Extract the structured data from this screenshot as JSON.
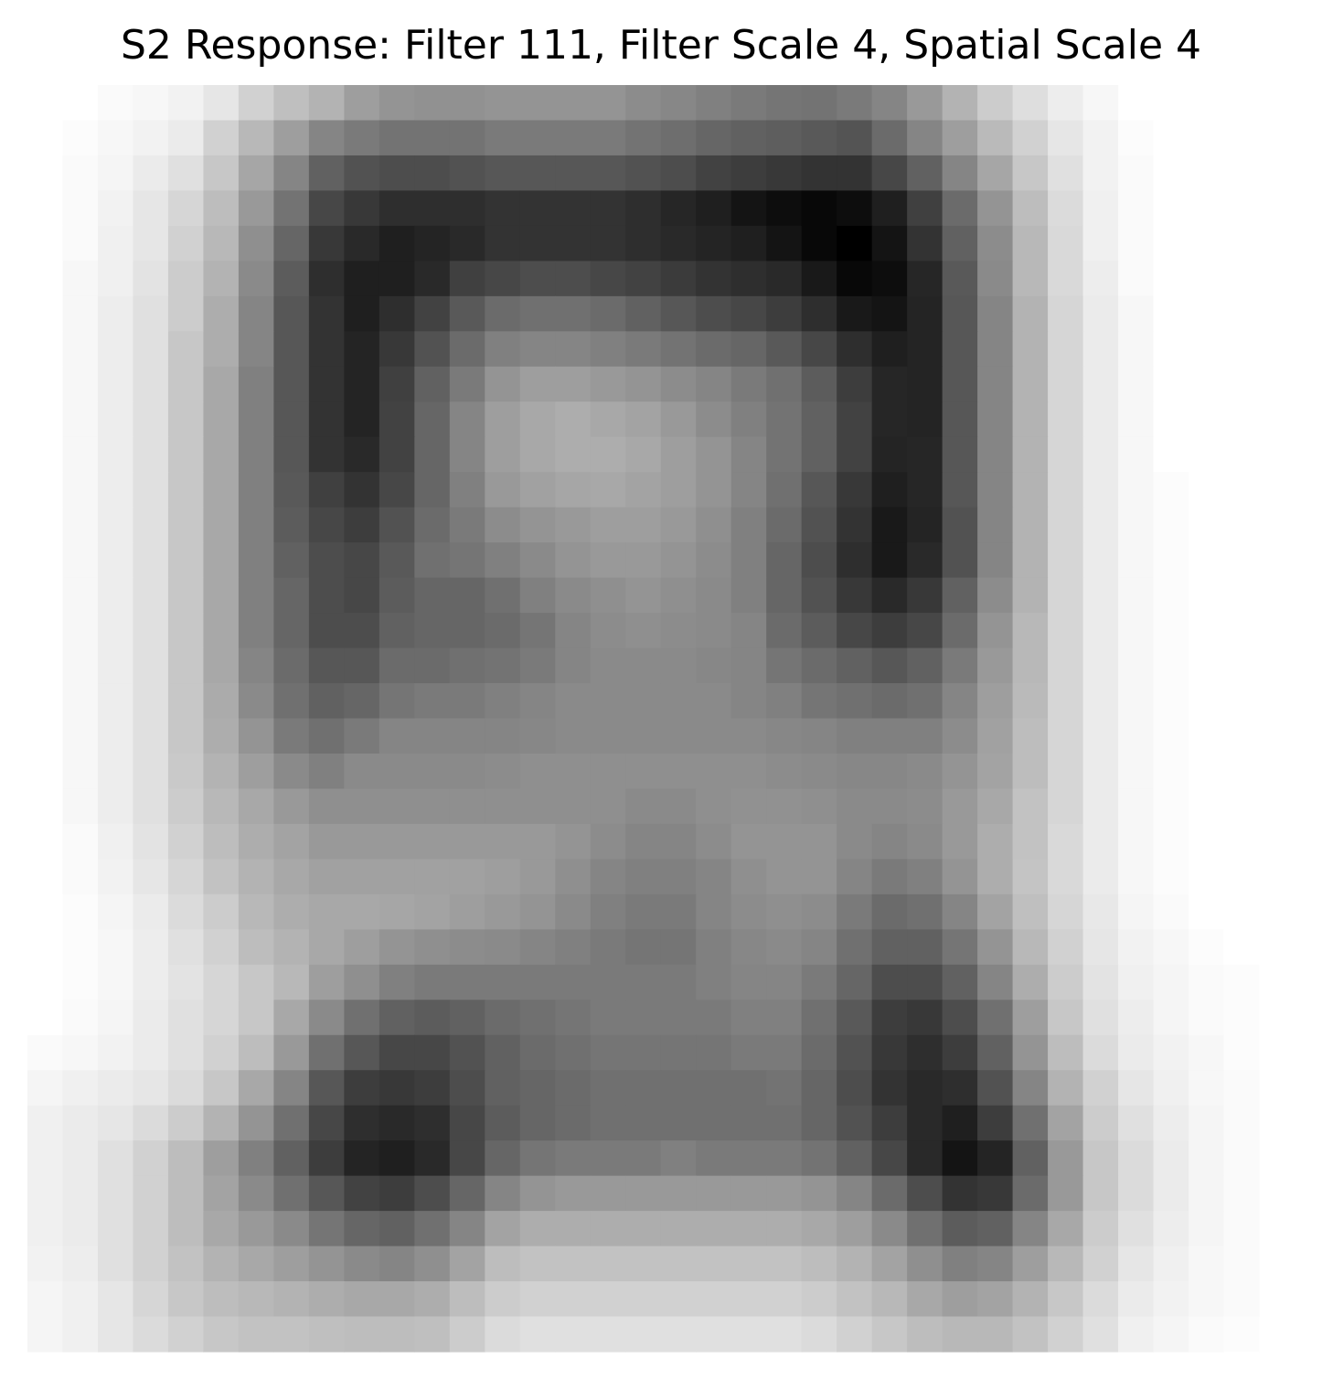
{
  "chart_data": {
    "type": "heatmap",
    "title": "S2 Response: Filter 111, Filter Scale 4, Spatial Scale 4",
    "cmap": "gray_r",
    "clim": [
      0,
      100
    ],
    "values": [
      [
        0,
        0,
        2,
        3,
        5,
        10,
        18,
        25,
        30,
        38,
        42,
        43,
        43,
        42,
        42,
        42,
        42,
        45,
        47,
        50,
        52,
        54,
        55,
        52,
        48,
        40,
        30,
        20,
        13,
        7,
        3,
        0,
        0,
        0,
        0
      ],
      [
        0,
        1,
        3,
        5,
        8,
        18,
        28,
        38,
        48,
        52,
        55,
        55,
        55,
        52,
        52,
        52,
        52,
        55,
        57,
        60,
        62,
        63,
        65,
        67,
        58,
        48,
        38,
        27,
        18,
        10,
        5,
        1,
        0,
        0,
        0
      ],
      [
        0,
        2,
        4,
        8,
        12,
        22,
        35,
        48,
        62,
        68,
        70,
        70,
        68,
        66,
        66,
        66,
        66,
        68,
        70,
        74,
        76,
        78,
        80,
        80,
        72,
        62,
        48,
        35,
        22,
        12,
        5,
        2,
        0,
        0,
        0
      ],
      [
        0,
        2,
        5,
        10,
        16,
        26,
        40,
        55,
        72,
        78,
        82,
        82,
        82,
        80,
        80,
        80,
        80,
        82,
        85,
        88,
        92,
        95,
        97,
        95,
        88,
        75,
        58,
        42,
        26,
        14,
        6,
        2,
        0,
        0,
        0
      ],
      [
        0,
        2,
        6,
        10,
        18,
        28,
        44,
        60,
        78,
        84,
        88,
        86,
        84,
        80,
        80,
        80,
        80,
        82,
        84,
        86,
        88,
        92,
        97,
        100,
        92,
        80,
        62,
        45,
        28,
        15,
        6,
        2,
        0,
        0,
        0
      ],
      [
        0,
        3,
        6,
        11,
        20,
        30,
        46,
        64,
        82,
        88,
        88,
        84,
        75,
        72,
        70,
        70,
        72,
        74,
        77,
        80,
        82,
        84,
        90,
        97,
        95,
        85,
        65,
        46,
        28,
        15,
        7,
        2,
        0,
        0,
        0
      ],
      [
        0,
        3,
        7,
        12,
        20,
        32,
        48,
        66,
        80,
        88,
        82,
        74,
        65,
        58,
        56,
        56,
        58,
        62,
        66,
        70,
        72,
        76,
        82,
        90,
        92,
        86,
        66,
        48,
        30,
        16,
        8,
        3,
        0,
        0,
        0
      ],
      [
        0,
        3,
        7,
        12,
        22,
        32,
        48,
        66,
        80,
        86,
        78,
        68,
        58,
        50,
        48,
        48,
        50,
        52,
        55,
        58,
        60,
        65,
        72,
        82,
        88,
        86,
        66,
        48,
        30,
        16,
        8,
        3,
        0,
        0,
        0
      ],
      [
        0,
        3,
        7,
        12,
        22,
        34,
        50,
        66,
        80,
        86,
        75,
        62,
        52,
        42,
        38,
        38,
        40,
        42,
        45,
        48,
        52,
        56,
        64,
        76,
        85,
        86,
        66,
        48,
        30,
        16,
        8,
        3,
        0,
        0,
        0
      ],
      [
        0,
        3,
        7,
        12,
        22,
        34,
        50,
        66,
        80,
        86,
        74,
        60,
        48,
        38,
        34,
        32,
        34,
        36,
        40,
        45,
        50,
        55,
        62,
        74,
        85,
        86,
        66,
        48,
        30,
        16,
        8,
        3,
        0,
        0,
        0
      ],
      [
        0,
        3,
        7,
        12,
        22,
        34,
        50,
        66,
        80,
        84,
        74,
        60,
        48,
        38,
        34,
        32,
        32,
        34,
        38,
        42,
        48,
        55,
        62,
        74,
        86,
        85,
        66,
        48,
        30,
        16,
        8,
        3,
        0,
        0,
        0
      ],
      [
        0,
        3,
        7,
        12,
        22,
        34,
        50,
        65,
        75,
        80,
        72,
        60,
        50,
        40,
        37,
        35,
        34,
        36,
        38,
        42,
        48,
        56,
        66,
        78,
        88,
        85,
        66,
        48,
        30,
        16,
        8,
        3,
        1,
        0,
        0
      ],
      [
        0,
        3,
        7,
        12,
        22,
        34,
        50,
        64,
        72,
        76,
        68,
        58,
        52,
        45,
        42,
        40,
        38,
        38,
        40,
        44,
        50,
        58,
        68,
        80,
        90,
        86,
        68,
        48,
        30,
        16,
        8,
        3,
        1,
        0,
        0
      ],
      [
        0,
        3,
        7,
        12,
        22,
        34,
        50,
        62,
        70,
        72,
        65,
        56,
        54,
        50,
        46,
        42,
        40,
        40,
        42,
        45,
        50,
        60,
        70,
        82,
        90,
        84,
        68,
        48,
        30,
        16,
        8,
        3,
        1,
        0,
        0
      ],
      [
        0,
        3,
        7,
        12,
        22,
        34,
        50,
        60,
        70,
        72,
        64,
        60,
        60,
        56,
        50,
        46,
        44,
        42,
        44,
        46,
        50,
        60,
        68,
        78,
        84,
        78,
        62,
        45,
        30,
        16,
        8,
        3,
        1,
        0,
        0
      ],
      [
        0,
        3,
        7,
        12,
        22,
        34,
        50,
        60,
        70,
        70,
        62,
        60,
        60,
        58,
        54,
        48,
        45,
        44,
        45,
        46,
        48,
        58,
        64,
        72,
        76,
        72,
        58,
        42,
        28,
        16,
        8,
        3,
        1,
        0,
        0
      ],
      [
        0,
        3,
        7,
        12,
        22,
        34,
        48,
        58,
        66,
        66,
        58,
        58,
        56,
        55,
        52,
        48,
        46,
        46,
        46,
        47,
        48,
        54,
        58,
        62,
        66,
        62,
        52,
        40,
        28,
        16,
        8,
        3,
        1,
        0,
        0
      ],
      [
        0,
        3,
        7,
        12,
        22,
        33,
        46,
        56,
        62,
        60,
        54,
        52,
        52,
        50,
        48,
        46,
        46,
        46,
        46,
        46,
        48,
        50,
        54,
        56,
        58,
        56,
        48,
        38,
        27,
        16,
        8,
        3,
        1,
        0,
        0
      ],
      [
        0,
        3,
        7,
        12,
        22,
        32,
        42,
        52,
        56,
        52,
        48,
        48,
        48,
        48,
        47,
        46,
        46,
        46,
        46,
        46,
        46,
        47,
        48,
        50,
        50,
        50,
        45,
        37,
        26,
        16,
        8,
        3,
        1,
        0,
        0
      ],
      [
        0,
        3,
        7,
        12,
        21,
        30,
        38,
        46,
        50,
        46,
        46,
        46,
        46,
        45,
        44,
        44,
        44,
        44,
        44,
        44,
        44,
        45,
        46,
        47,
        47,
        46,
        42,
        36,
        26,
        16,
        8,
        3,
        1,
        0,
        0
      ],
      [
        0,
        3,
        7,
        12,
        20,
        28,
        34,
        40,
        44,
        44,
        44,
        44,
        44,
        44,
        44,
        44,
        44,
        46,
        46,
        44,
        43,
        43,
        44,
        46,
        46,
        45,
        40,
        34,
        24,
        16,
        8,
        3,
        1,
        0,
        0
      ],
      [
        0,
        2,
        6,
        11,
        18,
        26,
        32,
        36,
        40,
        40,
        40,
        40,
        40,
        40,
        40,
        42,
        45,
        48,
        48,
        45,
        42,
        42,
        42,
        46,
        48,
        46,
        40,
        32,
        24,
        15,
        8,
        3,
        1,
        0,
        0
      ],
      [
        0,
        2,
        5,
        10,
        16,
        24,
        30,
        34,
        37,
        37,
        37,
        37,
        37,
        38,
        40,
        44,
        48,
        50,
        50,
        48,
        44,
        42,
        42,
        48,
        52,
        50,
        42,
        32,
        23,
        15,
        8,
        3,
        1,
        0,
        0
      ],
      [
        0,
        1,
        4,
        8,
        14,
        20,
        28,
        32,
        34,
        34,
        35,
        36,
        38,
        40,
        42,
        46,
        50,
        52,
        52,
        48,
        45,
        44,
        45,
        52,
        58,
        56,
        48,
        36,
        25,
        16,
        9,
        4,
        2,
        0,
        0
      ],
      [
        0,
        1,
        3,
        7,
        12,
        18,
        26,
        30,
        34,
        38,
        42,
        44,
        45,
        46,
        48,
        50,
        52,
        54,
        54,
        50,
        47,
        46,
        48,
        56,
        62,
        62,
        54,
        42,
        28,
        18,
        10,
        5,
        3,
        1,
        0
      ],
      [
        0,
        1,
        3,
        7,
        11,
        16,
        22,
        28,
        38,
        44,
        50,
        52,
        52,
        52,
        52,
        52,
        52,
        52,
        52,
        50,
        48,
        48,
        52,
        60,
        70,
        70,
        62,
        48,
        32,
        20,
        11,
        6,
        4,
        2,
        1
      ],
      [
        0,
        2,
        4,
        8,
        12,
        16,
        22,
        34,
        46,
        56,
        62,
        64,
        62,
        58,
        56,
        54,
        52,
        52,
        52,
        52,
        50,
        50,
        56,
        65,
        76,
        78,
        70,
        56,
        38,
        22,
        12,
        7,
        4,
        2,
        1
      ],
      [
        2,
        3,
        5,
        8,
        12,
        18,
        26,
        40,
        56,
        66,
        72,
        72,
        68,
        62,
        58,
        56,
        54,
        54,
        54,
        54,
        52,
        52,
        58,
        68,
        78,
        82,
        76,
        62,
        42,
        26,
        14,
        8,
        5,
        3,
        1
      ],
      [
        4,
        6,
        8,
        10,
        14,
        22,
        34,
        48,
        66,
        76,
        78,
        76,
        70,
        62,
        60,
        58,
        56,
        56,
        56,
        56,
        56,
        55,
        60,
        70,
        80,
        84,
        82,
        68,
        48,
        30,
        18,
        10,
        6,
        3,
        2
      ],
      [
        6,
        8,
        10,
        14,
        20,
        30,
        42,
        56,
        72,
        82,
        84,
        82,
        72,
        64,
        60,
        58,
        56,
        56,
        56,
        56,
        56,
        56,
        60,
        68,
        76,
        84,
        88,
        76,
        56,
        36,
        20,
        12,
        7,
        4,
        2
      ],
      [
        6,
        8,
        12,
        18,
        26,
        38,
        50,
        62,
        76,
        86,
        88,
        84,
        72,
        60,
        54,
        52,
        52,
        52,
        50,
        52,
        52,
        52,
        55,
        62,
        72,
        84,
        92,
        86,
        62,
        40,
        22,
        14,
        8,
        4,
        2
      ],
      [
        6,
        8,
        12,
        18,
        26,
        36,
        46,
        56,
        66,
        74,
        76,
        70,
        60,
        48,
        42,
        40,
        40,
        40,
        40,
        40,
        40,
        40,
        42,
        48,
        58,
        70,
        80,
        78,
        58,
        40,
        22,
        14,
        8,
        4,
        2
      ],
      [
        6,
        8,
        12,
        18,
        26,
        34,
        40,
        46,
        54,
        60,
        62,
        56,
        48,
        36,
        32,
        32,
        32,
        32,
        32,
        32,
        32,
        32,
        34,
        38,
        46,
        56,
        64,
        62,
        48,
        34,
        20,
        12,
        7,
        4,
        2
      ],
      [
        5,
        7,
        12,
        18,
        24,
        30,
        34,
        38,
        42,
        46,
        48,
        44,
        36,
        26,
        24,
        24,
        24,
        24,
        24,
        24,
        24,
        24,
        26,
        30,
        36,
        44,
        50,
        48,
        38,
        28,
        18,
        10,
        6,
        3,
        2
      ],
      [
        4,
        6,
        10,
        16,
        22,
        26,
        28,
        30,
        32,
        34,
        34,
        32,
        26,
        20,
        18,
        18,
        18,
        18,
        18,
        18,
        18,
        18,
        20,
        24,
        28,
        34,
        38,
        36,
        30,
        22,
        14,
        8,
        5,
        3,
        2
      ],
      [
        4,
        6,
        10,
        14,
        18,
        22,
        24,
        24,
        25,
        26,
        26,
        25,
        20,
        14,
        12,
        12,
        12,
        12,
        12,
        12,
        12,
        12,
        14,
        18,
        22,
        26,
        28,
        28,
        24,
        18,
        12,
        6,
        4,
        2,
        1
      ]
    ]
  }
}
